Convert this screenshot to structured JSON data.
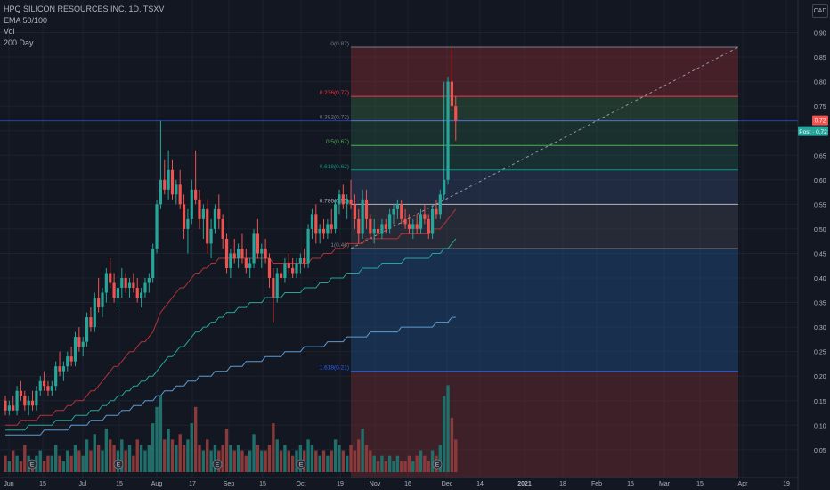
{
  "legend": {
    "symbol": "HPQ SILICON RESOURCES INC, 1D, TSXV",
    "ema": "EMA 50/100",
    "vol": "Vol",
    "ma": "200 Day"
  },
  "currency": "CAD",
  "price_label": "0.72",
  "post_label": "Post · 0.72",
  "chart_data": {
    "type": "candlestick",
    "ylim": [
      0.0,
      0.92
    ],
    "y_ticks": [
      "0.90",
      "0.85",
      "0.80",
      "0.75",
      "0.70",
      "0.65",
      "0.60",
      "0.55",
      "0.50",
      "0.45",
      "0.40",
      "0.35",
      "0.30",
      "0.25",
      "0.20",
      "0.15",
      "0.10",
      "0.05"
    ],
    "x_ticks": [
      "Jun",
      "15",
      "Jul",
      "15",
      "Aug",
      "17",
      "Sep",
      "15",
      "Oct",
      "19",
      "Nov",
      "16",
      "Dec",
      "14",
      "2021",
      "18",
      "Feb",
      "15",
      "Mar",
      "15",
      "Apr",
      "19"
    ],
    "fib_levels": [
      {
        "label": "0(0.87)",
        "value": 0.87,
        "color": "#787b86"
      },
      {
        "label": "0.236(0.77)",
        "value": 0.77,
        "color": "#f23645"
      },
      {
        "label": "0.382(0.72)",
        "value": 0.72,
        "color": "#787b86"
      },
      {
        "label": "0.5(0.67)",
        "value": 0.67,
        "color": "#4caf50"
      },
      {
        "label": "0.618(0.62)",
        "value": 0.62,
        "color": "#089981"
      },
      {
        "label": "0.786(0.55)",
        "value": 0.55,
        "color": "#b2b5be"
      },
      {
        "label": "1(0.46)",
        "value": 0.46,
        "color": "#787b86"
      },
      {
        "label": "1.618(0.21)",
        "value": 0.21,
        "color": "#2962ff"
      }
    ],
    "candles": [
      [
        0.15,
        0.16,
        0.12,
        0.13
      ],
      [
        0.13,
        0.15,
        0.12,
        0.14
      ],
      [
        0.14,
        0.16,
        0.13,
        0.13
      ],
      [
        0.13,
        0.18,
        0.12,
        0.17
      ],
      [
        0.17,
        0.19,
        0.15,
        0.16
      ],
      [
        0.16,
        0.17,
        0.13,
        0.14
      ],
      [
        0.14,
        0.16,
        0.12,
        0.15
      ],
      [
        0.15,
        0.17,
        0.13,
        0.14
      ],
      [
        0.14,
        0.18,
        0.13,
        0.17
      ],
      [
        0.17,
        0.2,
        0.16,
        0.19
      ],
      [
        0.19,
        0.21,
        0.17,
        0.18
      ],
      [
        0.18,
        0.19,
        0.16,
        0.17
      ],
      [
        0.17,
        0.19,
        0.16,
        0.18
      ],
      [
        0.18,
        0.23,
        0.17,
        0.22
      ],
      [
        0.22,
        0.25,
        0.2,
        0.21
      ],
      [
        0.21,
        0.23,
        0.19,
        0.22
      ],
      [
        0.22,
        0.25,
        0.21,
        0.24
      ],
      [
        0.24,
        0.26,
        0.22,
        0.23
      ],
      [
        0.23,
        0.29,
        0.22,
        0.28
      ],
      [
        0.28,
        0.3,
        0.25,
        0.26
      ],
      [
        0.26,
        0.28,
        0.24,
        0.27
      ],
      [
        0.27,
        0.33,
        0.26,
        0.32
      ],
      [
        0.32,
        0.34,
        0.29,
        0.3
      ],
      [
        0.3,
        0.37,
        0.29,
        0.36
      ],
      [
        0.36,
        0.4,
        0.33,
        0.34
      ],
      [
        0.34,
        0.38,
        0.32,
        0.37
      ],
      [
        0.37,
        0.42,
        0.35,
        0.41
      ],
      [
        0.41,
        0.44,
        0.38,
        0.39
      ],
      [
        0.39,
        0.41,
        0.35,
        0.36
      ],
      [
        0.36,
        0.39,
        0.34,
        0.38
      ],
      [
        0.38,
        0.42,
        0.36,
        0.4
      ],
      [
        0.4,
        0.41,
        0.37,
        0.38
      ],
      [
        0.38,
        0.4,
        0.36,
        0.39
      ],
      [
        0.39,
        0.41,
        0.37,
        0.38
      ],
      [
        0.38,
        0.4,
        0.35,
        0.36
      ],
      [
        0.36,
        0.38,
        0.34,
        0.37
      ],
      [
        0.37,
        0.4,
        0.36,
        0.39
      ],
      [
        0.39,
        0.41,
        0.37,
        0.4
      ],
      [
        0.4,
        0.47,
        0.39,
        0.46
      ],
      [
        0.46,
        0.56,
        0.45,
        0.55
      ],
      [
        0.55,
        0.72,
        0.54,
        0.6
      ],
      [
        0.6,
        0.64,
        0.57,
        0.58
      ],
      [
        0.58,
        0.66,
        0.56,
        0.62
      ],
      [
        0.62,
        0.64,
        0.56,
        0.57
      ],
      [
        0.57,
        0.6,
        0.55,
        0.59
      ],
      [
        0.59,
        0.62,
        0.54,
        0.55
      ],
      [
        0.55,
        0.57,
        0.48,
        0.5
      ],
      [
        0.5,
        0.54,
        0.45,
        0.52
      ],
      [
        0.52,
        0.6,
        0.51,
        0.58
      ],
      [
        0.58,
        0.66,
        0.55,
        0.56
      ],
      [
        0.56,
        0.58,
        0.5,
        0.52
      ],
      [
        0.52,
        0.55,
        0.48,
        0.54
      ],
      [
        0.54,
        0.56,
        0.45,
        0.47
      ],
      [
        0.47,
        0.52,
        0.44,
        0.5
      ],
      [
        0.5,
        0.55,
        0.49,
        0.54
      ],
      [
        0.54,
        0.57,
        0.5,
        0.52
      ],
      [
        0.52,
        0.53,
        0.46,
        0.48
      ],
      [
        0.48,
        0.49,
        0.41,
        0.42
      ],
      [
        0.42,
        0.46,
        0.4,
        0.45
      ],
      [
        0.45,
        0.48,
        0.43,
        0.44
      ],
      [
        0.44,
        0.47,
        0.42,
        0.46
      ],
      [
        0.46,
        0.49,
        0.43,
        0.44
      ],
      [
        0.44,
        0.46,
        0.41,
        0.42
      ],
      [
        0.42,
        0.44,
        0.4,
        0.43
      ],
      [
        0.43,
        0.5,
        0.42,
        0.49
      ],
      [
        0.49,
        0.52,
        0.44,
        0.45
      ],
      [
        0.45,
        0.47,
        0.42,
        0.46
      ],
      [
        0.46,
        0.48,
        0.43,
        0.44
      ],
      [
        0.44,
        0.45,
        0.38,
        0.4
      ],
      [
        0.4,
        0.42,
        0.31,
        0.36
      ],
      [
        0.36,
        0.42,
        0.35,
        0.41
      ],
      [
        0.41,
        0.43,
        0.39,
        0.4
      ],
      [
        0.4,
        0.44,
        0.39,
        0.43
      ],
      [
        0.43,
        0.45,
        0.41,
        0.42
      ],
      [
        0.42,
        0.44,
        0.4,
        0.41
      ],
      [
        0.41,
        0.44,
        0.4,
        0.43
      ],
      [
        0.43,
        0.45,
        0.41,
        0.44
      ],
      [
        0.44,
        0.46,
        0.42,
        0.43
      ],
      [
        0.43,
        0.51,
        0.42,
        0.5
      ],
      [
        0.5,
        0.54,
        0.48,
        0.53
      ],
      [
        0.53,
        0.55,
        0.47,
        0.49
      ],
      [
        0.49,
        0.51,
        0.47,
        0.5
      ],
      [
        0.5,
        0.52,
        0.48,
        0.49
      ],
      [
        0.49,
        0.52,
        0.48,
        0.51
      ],
      [
        0.51,
        0.54,
        0.49,
        0.5
      ],
      [
        0.5,
        0.56,
        0.49,
        0.55
      ],
      [
        0.55,
        0.58,
        0.53,
        0.57
      ],
      [
        0.57,
        0.59,
        0.54,
        0.55
      ],
      [
        0.55,
        0.57,
        0.52,
        0.56
      ],
      [
        0.56,
        0.6,
        0.54,
        0.55
      ],
      [
        0.55,
        0.57,
        0.5,
        0.52
      ],
      [
        0.52,
        0.54,
        0.47,
        0.49
      ],
      [
        0.49,
        0.58,
        0.48,
        0.56
      ],
      [
        0.56,
        0.58,
        0.5,
        0.52
      ],
      [
        0.52,
        0.53,
        0.48,
        0.49
      ],
      [
        0.49,
        0.52,
        0.47,
        0.5
      ],
      [
        0.5,
        0.51,
        0.48,
        0.49
      ],
      [
        0.49,
        0.52,
        0.48,
        0.51
      ],
      [
        0.51,
        0.52,
        0.49,
        0.5
      ],
      [
        0.5,
        0.54,
        0.49,
        0.53
      ],
      [
        0.53,
        0.55,
        0.51,
        0.54
      ],
      [
        0.54,
        0.56,
        0.52,
        0.55
      ],
      [
        0.55,
        0.56,
        0.51,
        0.52
      ],
      [
        0.52,
        0.54,
        0.5,
        0.51
      ],
      [
        0.51,
        0.53,
        0.49,
        0.5
      ],
      [
        0.5,
        0.52,
        0.48,
        0.51
      ],
      [
        0.51,
        0.53,
        0.49,
        0.5
      ],
      [
        0.5,
        0.54,
        0.49,
        0.53
      ],
      [
        0.53,
        0.55,
        0.51,
        0.52
      ],
      [
        0.52,
        0.53,
        0.48,
        0.49
      ],
      [
        0.49,
        0.55,
        0.48,
        0.54
      ],
      [
        0.54,
        0.56,
        0.52,
        0.53
      ],
      [
        0.53,
        0.58,
        0.52,
        0.57
      ],
      [
        0.57,
        0.8,
        0.56,
        0.6
      ],
      [
        0.6,
        0.81,
        0.59,
        0.8
      ],
      [
        0.8,
        0.87,
        0.74,
        0.75
      ],
      [
        0.75,
        0.77,
        0.68,
        0.72
      ]
    ],
    "volume": [
      0.03,
      0.02,
      0.04,
      0.03,
      0.02,
      0.05,
      0.03,
      0.02,
      0.03,
      0.04,
      0.02,
      0.03,
      0.03,
      0.05,
      0.03,
      0.02,
      0.04,
      0.03,
      0.05,
      0.04,
      0.03,
      0.06,
      0.04,
      0.07,
      0.05,
      0.04,
      0.08,
      0.06,
      0.05,
      0.04,
      0.06,
      0.04,
      0.05,
      0.03,
      0.06,
      0.05,
      0.04,
      0.05,
      0.09,
      0.12,
      0.14,
      0.06,
      0.08,
      0.06,
      0.05,
      0.07,
      0.05,
      0.06,
      0.09,
      0.12,
      0.05,
      0.04,
      0.06,
      0.04,
      0.05,
      0.04,
      0.05,
      0.08,
      0.05,
      0.04,
      0.05,
      0.04,
      0.03,
      0.04,
      0.07,
      0.05,
      0.04,
      0.04,
      0.05,
      0.09,
      0.06,
      0.04,
      0.05,
      0.04,
      0.03,
      0.04,
      0.05,
      0.04,
      0.06,
      0.05,
      0.04,
      0.03,
      0.04,
      0.03,
      0.04,
      0.06,
      0.05,
      0.04,
      0.03,
      0.05,
      0.04,
      0.06,
      0.08,
      0.05,
      0.04,
      0.03,
      0.02,
      0.03,
      0.02,
      0.03,
      0.02,
      0.03,
      0.02,
      0.02,
      0.03,
      0.02,
      0.03,
      0.04,
      0.03,
      0.02,
      0.04,
      0.03,
      0.05,
      0.14,
      0.16,
      0.1,
      0.06
    ],
    "ema50": [
      0.1,
      0.1,
      0.1,
      0.1,
      0.11,
      0.11,
      0.11,
      0.11,
      0.11,
      0.12,
      0.12,
      0.12,
      0.12,
      0.13,
      0.13,
      0.13,
      0.14,
      0.14,
      0.15,
      0.15,
      0.15,
      0.16,
      0.17,
      0.17,
      0.18,
      0.19,
      0.2,
      0.21,
      0.22,
      0.22,
      0.23,
      0.24,
      0.25,
      0.25,
      0.26,
      0.27,
      0.27,
      0.28,
      0.29,
      0.31,
      0.33,
      0.34,
      0.35,
      0.36,
      0.37,
      0.38,
      0.38,
      0.39,
      0.4,
      0.41,
      0.41,
      0.42,
      0.42,
      0.43,
      0.43,
      0.44,
      0.44,
      0.44,
      0.44,
      0.44,
      0.44,
      0.44,
      0.44,
      0.44,
      0.44,
      0.44,
      0.44,
      0.44,
      0.44,
      0.43,
      0.43,
      0.43,
      0.43,
      0.43,
      0.43,
      0.43,
      0.43,
      0.43,
      0.43,
      0.44,
      0.44,
      0.44,
      0.45,
      0.45,
      0.45,
      0.46,
      0.46,
      0.46,
      0.47,
      0.47,
      0.47,
      0.47,
      0.47,
      0.48,
      0.48,
      0.48,
      0.48,
      0.48,
      0.48,
      0.48,
      0.48,
      0.48,
      0.49,
      0.49,
      0.49,
      0.49,
      0.49,
      0.49,
      0.49,
      0.49,
      0.5,
      0.5,
      0.5,
      0.51,
      0.52,
      0.53,
      0.54
    ],
    "ema100": [
      0.09,
      0.09,
      0.09,
      0.09,
      0.09,
      0.09,
      0.1,
      0.1,
      0.1,
      0.1,
      0.1,
      0.1,
      0.1,
      0.11,
      0.11,
      0.11,
      0.11,
      0.11,
      0.12,
      0.12,
      0.12,
      0.12,
      0.13,
      0.13,
      0.13,
      0.14,
      0.14,
      0.15,
      0.15,
      0.16,
      0.16,
      0.17,
      0.17,
      0.18,
      0.18,
      0.19,
      0.19,
      0.2,
      0.2,
      0.21,
      0.22,
      0.23,
      0.24,
      0.24,
      0.25,
      0.26,
      0.26,
      0.27,
      0.28,
      0.29,
      0.29,
      0.3,
      0.3,
      0.31,
      0.31,
      0.32,
      0.32,
      0.33,
      0.33,
      0.33,
      0.34,
      0.34,
      0.34,
      0.35,
      0.35,
      0.35,
      0.35,
      0.36,
      0.36,
      0.36,
      0.36,
      0.36,
      0.37,
      0.37,
      0.37,
      0.37,
      0.37,
      0.38,
      0.38,
      0.38,
      0.38,
      0.39,
      0.39,
      0.39,
      0.4,
      0.4,
      0.4,
      0.4,
      0.41,
      0.41,
      0.41,
      0.41,
      0.42,
      0.42,
      0.42,
      0.42,
      0.42,
      0.43,
      0.43,
      0.43,
      0.43,
      0.43,
      0.43,
      0.44,
      0.44,
      0.44,
      0.44,
      0.44,
      0.44,
      0.44,
      0.45,
      0.45,
      0.45,
      0.46,
      0.46,
      0.47,
      0.48
    ],
    "ma200": [
      0.08,
      0.08,
      0.08,
      0.08,
      0.08,
      0.08,
      0.08,
      0.08,
      0.08,
      0.08,
      0.09,
      0.09,
      0.09,
      0.09,
      0.09,
      0.09,
      0.09,
      0.1,
      0.1,
      0.1,
      0.1,
      0.1,
      0.11,
      0.11,
      0.11,
      0.11,
      0.12,
      0.12,
      0.12,
      0.12,
      0.13,
      0.13,
      0.13,
      0.14,
      0.14,
      0.14,
      0.15,
      0.15,
      0.15,
      0.16,
      0.16,
      0.17,
      0.17,
      0.17,
      0.18,
      0.18,
      0.18,
      0.19,
      0.19,
      0.19,
      0.2,
      0.2,
      0.2,
      0.2,
      0.21,
      0.21,
      0.21,
      0.21,
      0.22,
      0.22,
      0.22,
      0.22,
      0.23,
      0.23,
      0.23,
      0.23,
      0.23,
      0.24,
      0.24,
      0.24,
      0.24,
      0.24,
      0.25,
      0.25,
      0.25,
      0.25,
      0.25,
      0.26,
      0.26,
      0.26,
      0.26,
      0.26,
      0.26,
      0.27,
      0.27,
      0.27,
      0.27,
      0.27,
      0.28,
      0.28,
      0.28,
      0.28,
      0.28,
      0.28,
      0.29,
      0.29,
      0.29,
      0.29,
      0.29,
      0.29,
      0.29,
      0.29,
      0.3,
      0.3,
      0.3,
      0.3,
      0.3,
      0.3,
      0.3,
      0.3,
      0.3,
      0.31,
      0.31,
      0.31,
      0.31,
      0.32,
      0.32
    ],
    "colors": {
      "up": "#26a69a",
      "down": "#ef5350",
      "ema50": "#b2333a",
      "ema100": "#26a69a",
      "ma200": "#5b9bd5",
      "volume_up": "#1f6f6a",
      "volume_down": "#8a3a3a"
    }
  }
}
